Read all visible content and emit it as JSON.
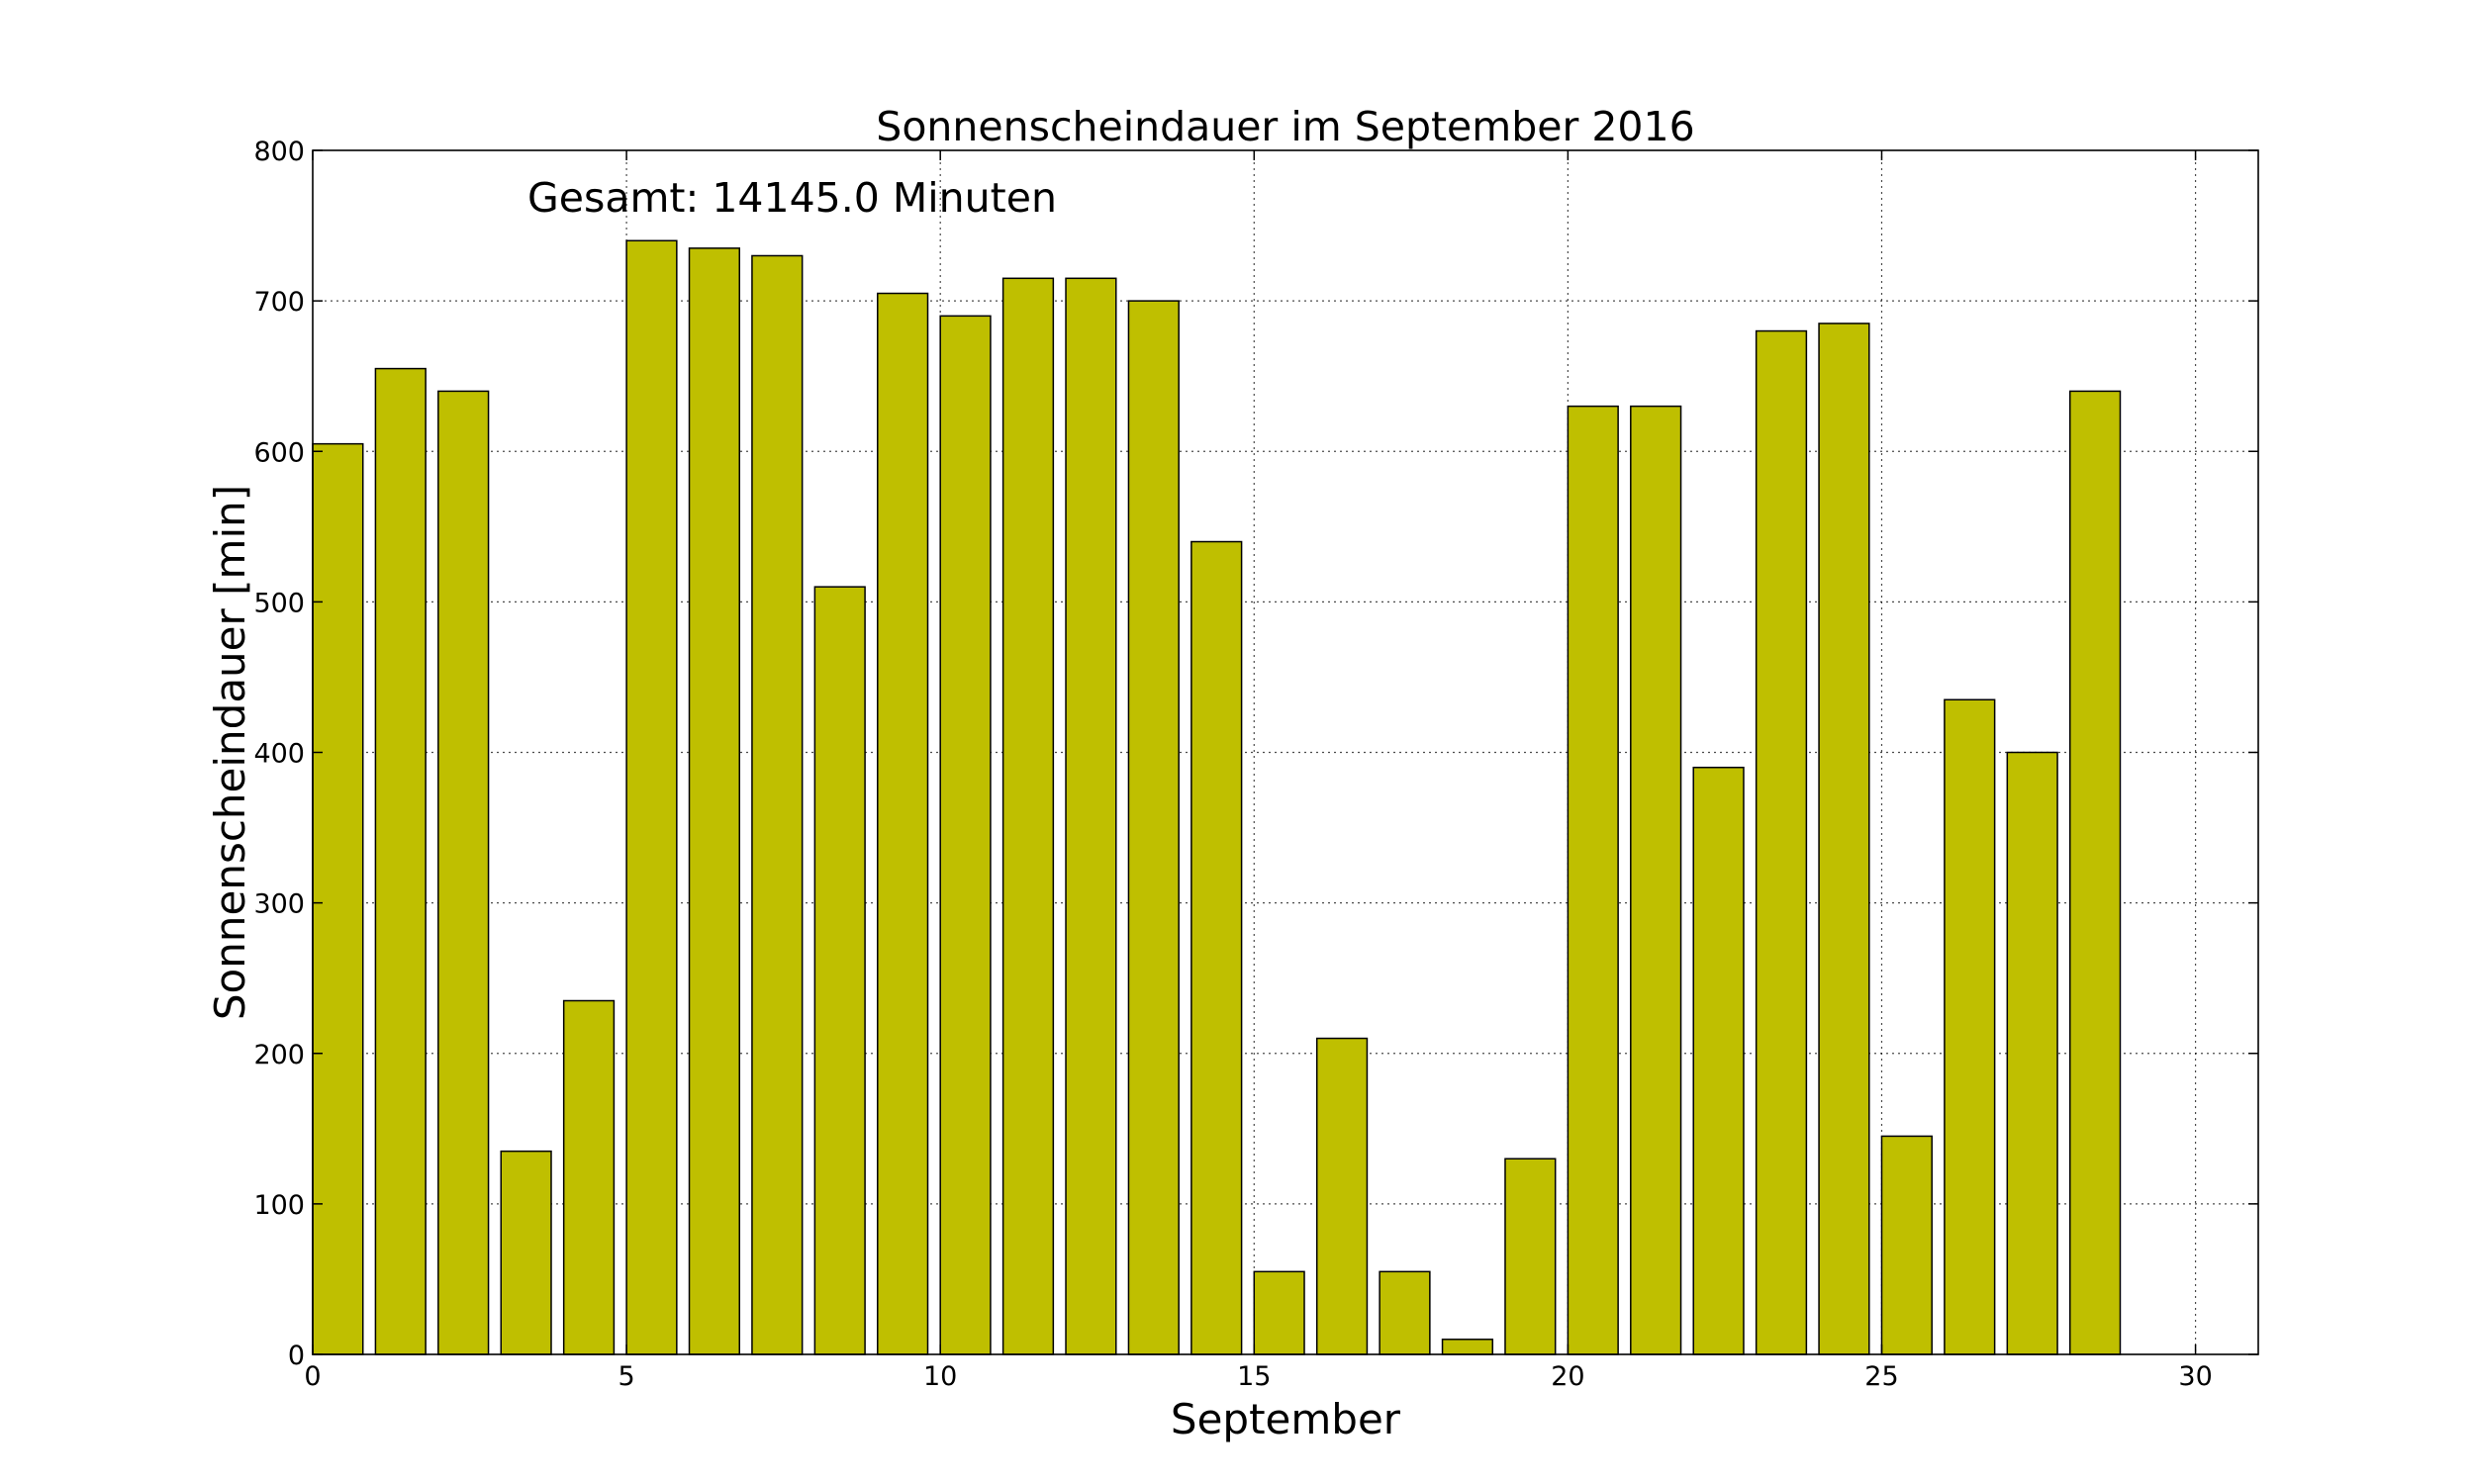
{
  "chart_data": {
    "type": "bar",
    "title": "Sonnenscheindauer im September 2016",
    "xlabel": "September",
    "ylabel": "Sonnenscheindauer [min]",
    "annotation": "Gesamt: 14145.0 Minuten",
    "x": [
      0,
      1,
      2,
      3,
      4,
      5,
      6,
      7,
      8,
      9,
      10,
      11,
      12,
      13,
      14,
      15,
      16,
      17,
      18,
      19,
      20,
      21,
      22,
      23,
      24,
      25,
      26,
      27,
      28,
      29
    ],
    "values": [
      605,
      655,
      640,
      135,
      235,
      740,
      735,
      730,
      510,
      705,
      690,
      715,
      715,
      700,
      540,
      55,
      210,
      55,
      10,
      130,
      630,
      630,
      390,
      680,
      685,
      145,
      435,
      400,
      640,
      0
    ],
    "bar_width": 0.8,
    "xlim": [
      0,
      31
    ],
    "ylim": [
      0,
      800
    ],
    "xticks": [
      0,
      5,
      10,
      15,
      20,
      25,
      30
    ],
    "yticks": [
      0,
      100,
      200,
      300,
      400,
      500,
      600,
      700,
      800
    ],
    "grid": true,
    "bar_color": "#bfbf00",
    "edge_color": "#000000"
  }
}
